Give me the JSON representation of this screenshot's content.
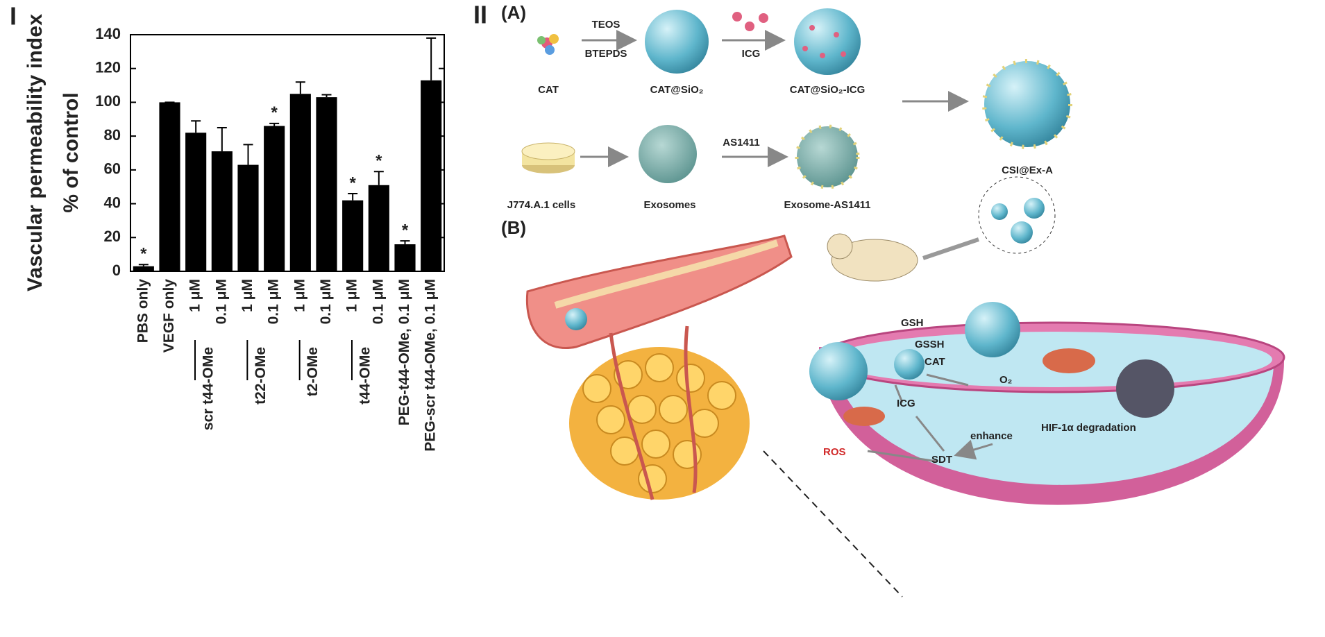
{
  "chart_data": {
    "type": "bar",
    "panel_label": "I",
    "ylabel": "Vascular permeability index",
    "ylabel2": "% of control",
    "categories": [
      "PBS only",
      "VEGF only",
      "1 μM",
      "0.1 μM",
      "1 μM",
      "0.1 μM",
      "1 μM",
      "0.1 μM",
      "1 μM",
      "0.1 μM",
      "PEG-t44-OMe, 0.1 μM",
      "PEG-scr t44-OMe, 0.1 μM"
    ],
    "category_groups": [
      null,
      null,
      "scr t44-OMe",
      "scr t44-OMe",
      "t22-OMe",
      "t22-OMe",
      "t2-OMe",
      "t2-OMe",
      "t44-OMe",
      "t44-OMe",
      null,
      null
    ],
    "values": [
      3,
      100,
      82,
      71,
      63,
      86,
      105,
      103,
      42,
      51,
      16,
      113
    ],
    "errors": [
      1,
      0,
      7,
      14,
      12,
      1.5,
      7,
      1.5,
      4,
      8,
      2,
      25
    ],
    "significance": [
      "*",
      null,
      null,
      null,
      null,
      "*",
      null,
      null,
      "*",
      "*",
      "*",
      null
    ],
    "color": "#000000",
    "ylim": [
      0,
      140
    ],
    "yticks": [
      0,
      20,
      40,
      60,
      80,
      100,
      120,
      140
    ]
  },
  "diagram": {
    "panel_label": "II",
    "part_a": "(A)",
    "part_b": "(B)",
    "reagents": {
      "teos": "TEOS",
      "btepds": "BTEPDS",
      "icg": "ICG",
      "as1411": "AS1411"
    },
    "nodes": {
      "cat": "CAT",
      "cat_sio2": "CAT@SiO₂",
      "cat_sio2_icg": "CAT@SiO₂-ICG",
      "csi_ex_a": "CSI@Ex-A",
      "cells": "J774.A.1 cells",
      "exosomes": "Exosomes",
      "exosome_as1411": "Exosome-AS1411"
    },
    "cell_labels": {
      "gsh": "GSH",
      "gssh": "GSSH",
      "cat": "CAT",
      "o2": "O₂",
      "icg": "ICG",
      "hif": "HIF-1α degradation",
      "ros": "ROS",
      "enhance": "enhance",
      "sdt": "SDT"
    }
  }
}
